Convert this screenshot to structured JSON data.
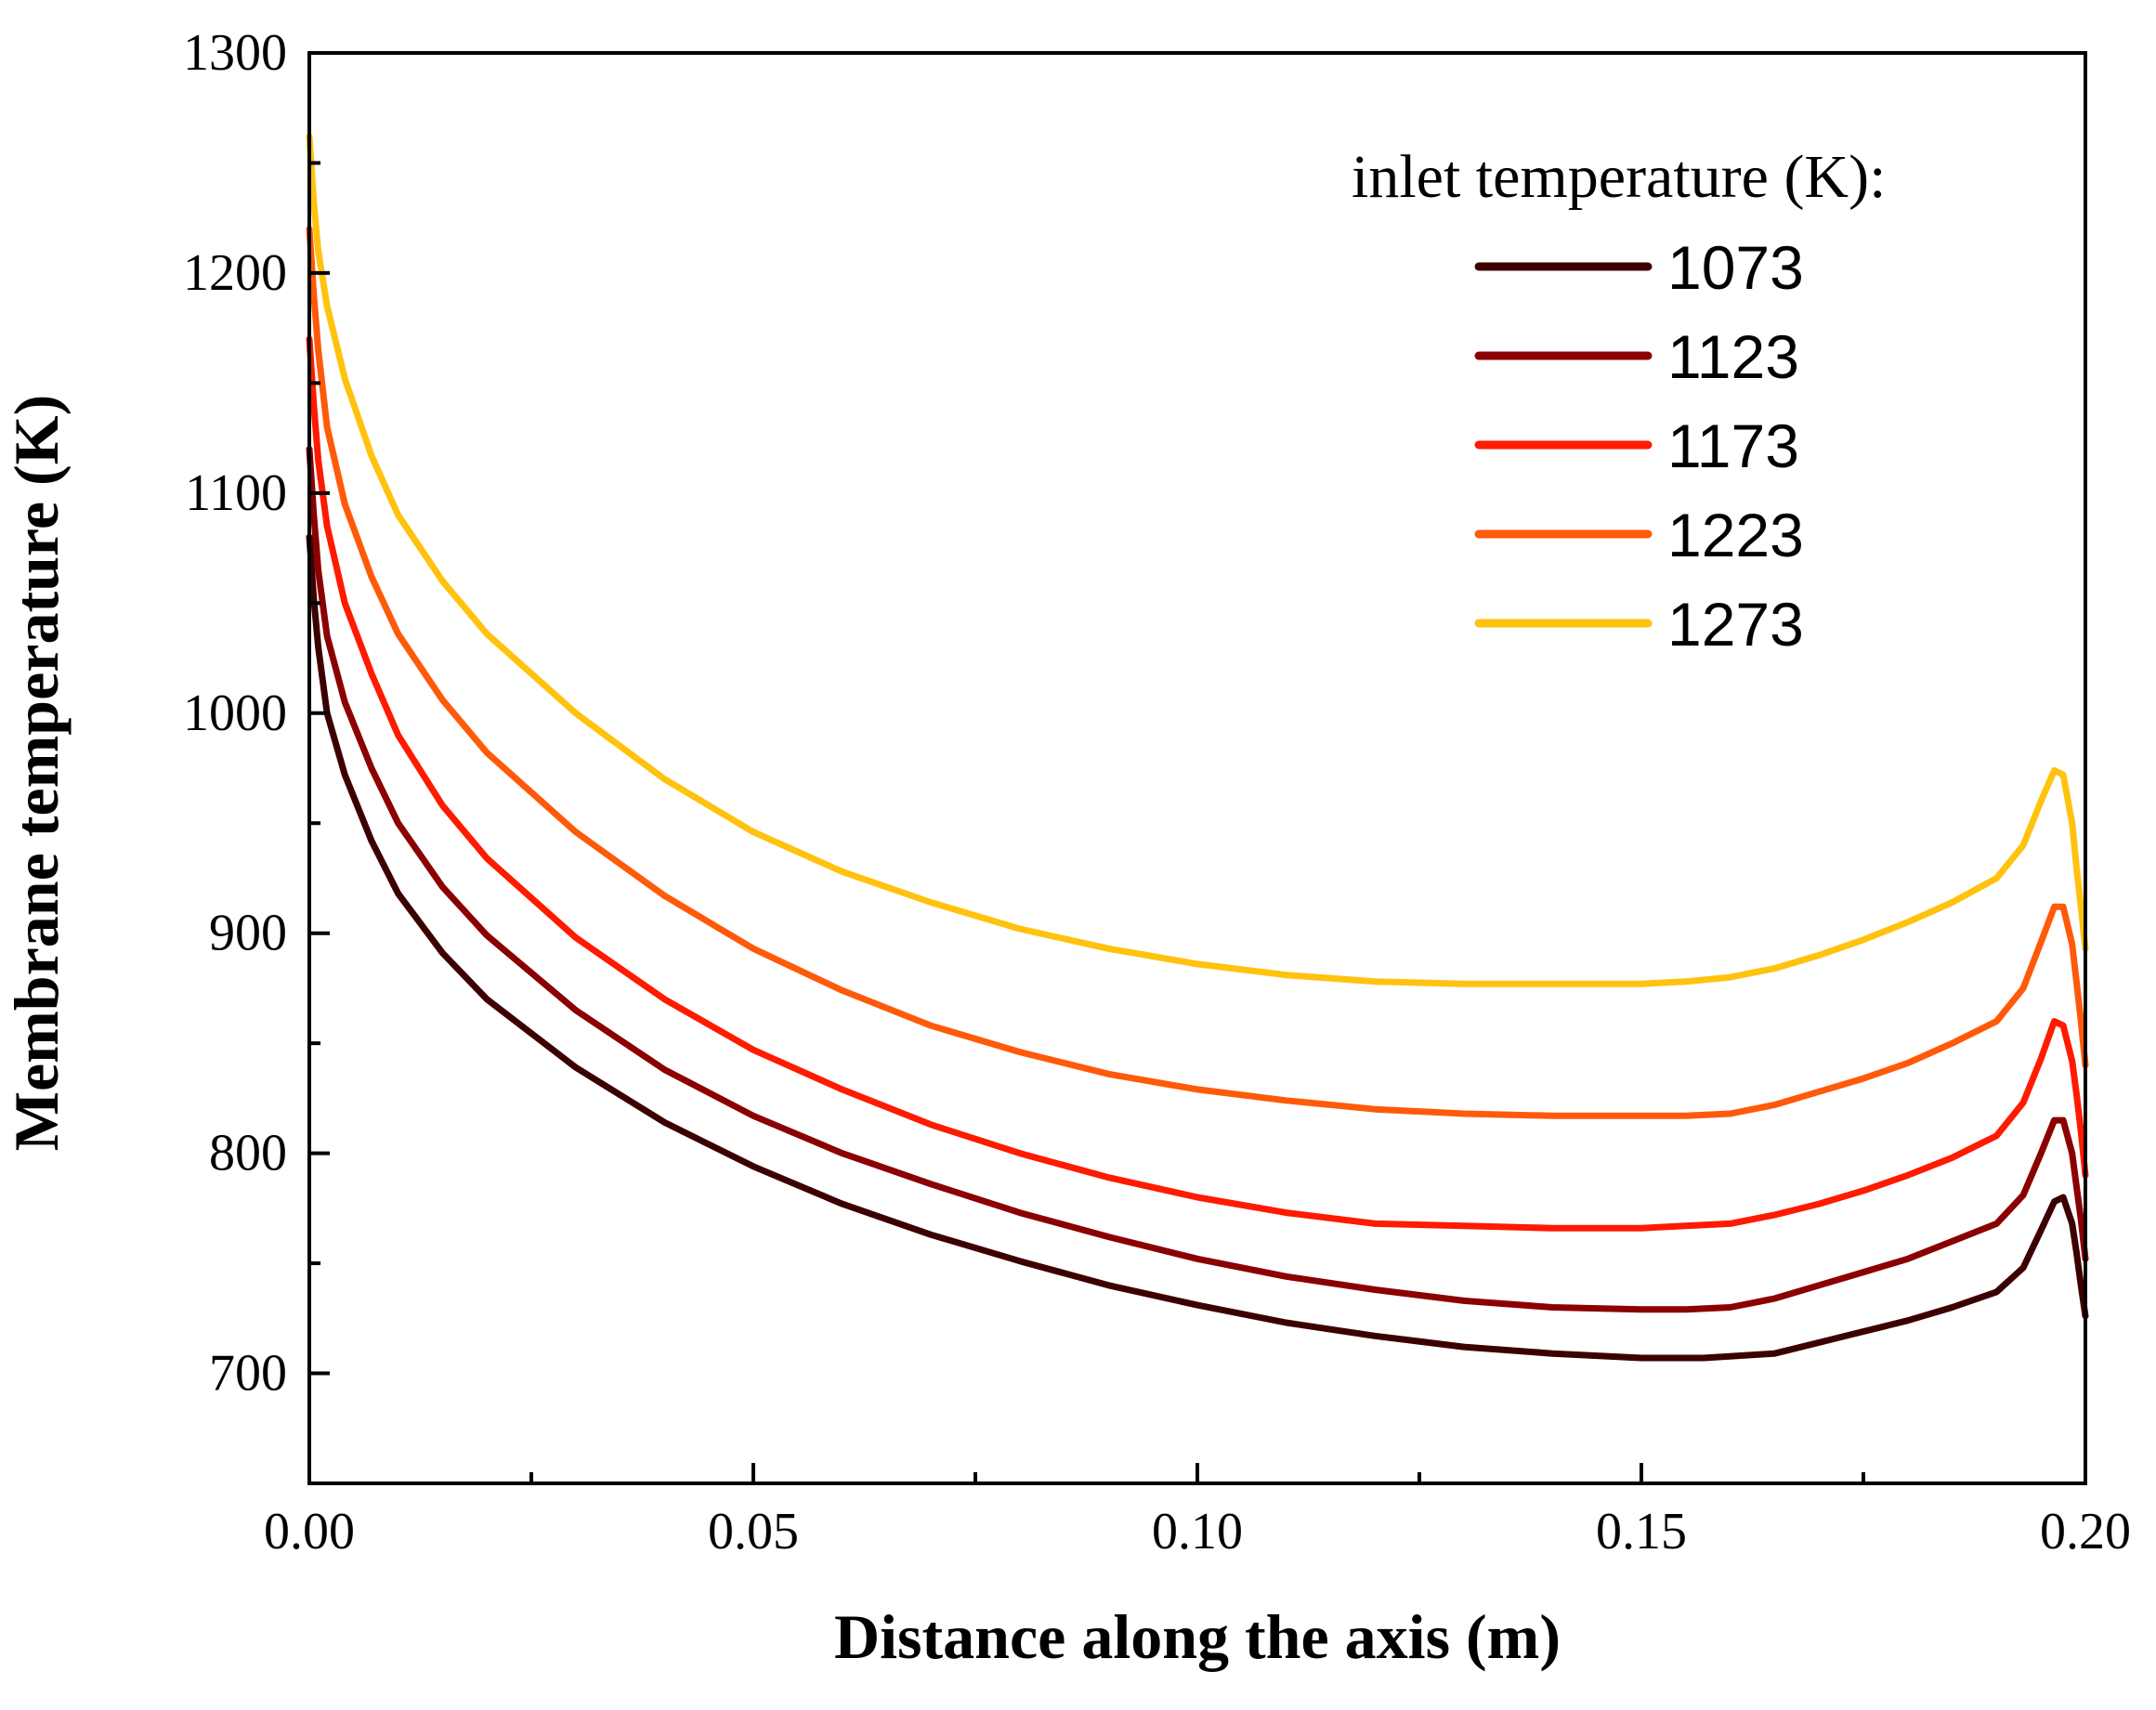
{
  "chart_data": {
    "type": "line",
    "title": "",
    "xlabel": "Distance along the axis (m)",
    "ylabel": "Membrane temperature (K)",
    "xlim": [
      0,
      0.2
    ],
    "ylim": [
      650,
      1300
    ],
    "xticks": [
      0.0,
      0.05,
      0.1,
      0.15,
      0.2
    ],
    "xtick_labels": [
      "0.00",
      "0.05",
      "0.10",
      "0.15",
      "0.20"
    ],
    "xminor": [
      0.025,
      0.075,
      0.125,
      0.175
    ],
    "yticks": [
      700,
      800,
      900,
      1000,
      1100,
      1200,
      1300
    ],
    "ytick_labels": [
      "700",
      "800",
      "900",
      "1000",
      "1100",
      "1200",
      "1300"
    ],
    "yminor": [
      650,
      750,
      850,
      950,
      1050,
      1150,
      1250
    ],
    "grid": false,
    "legend": {
      "title": "inlet temperature (K):",
      "position": "top-right"
    },
    "series": [
      {
        "name": "1073",
        "color": "#3d0000",
        "x": [
          0,
          0.0005,
          0.001,
          0.002,
          0.004,
          0.007,
          0.01,
          0.015,
          0.02,
          0.03,
          0.04,
          0.05,
          0.06,
          0.07,
          0.08,
          0.09,
          0.1,
          0.11,
          0.12,
          0.13,
          0.14,
          0.15,
          0.157,
          0.165,
          0.17,
          0.175,
          0.18,
          0.185,
          0.19,
          0.193,
          0.195,
          0.1965,
          0.1975,
          0.1985,
          0.199,
          0.1995,
          0.2
        ],
        "values": [
          1080,
          1052,
          1030,
          1000,
          972,
          942,
          918,
          891,
          870,
          839,
          814,
          794,
          777,
          763,
          751,
          740,
          731,
          723,
          717,
          712,
          709,
          707,
          707,
          709,
          714,
          719,
          724,
          730,
          737,
          748,
          765,
          778,
          780,
          768,
          755,
          740,
          726
        ]
      },
      {
        "name": "1123",
        "color": "#8b0000",
        "x": [
          0,
          0.0005,
          0.001,
          0.002,
          0.004,
          0.007,
          0.01,
          0.015,
          0.02,
          0.03,
          0.04,
          0.05,
          0.06,
          0.07,
          0.08,
          0.09,
          0.1,
          0.11,
          0.12,
          0.13,
          0.14,
          0.15,
          0.155,
          0.16,
          0.165,
          0.17,
          0.175,
          0.18,
          0.185,
          0.19,
          0.193,
          0.195,
          0.1965,
          0.1975,
          0.1985,
          0.199,
          0.1995,
          0.2
        ],
        "values": [
          1120,
          1090,
          1065,
          1035,
          1005,
          975,
          950,
          921,
          899,
          865,
          838,
          817,
          800,
          786,
          773,
          762,
          752,
          744,
          738,
          733,
          730,
          729,
          729,
          730,
          734,
          740,
          746,
          752,
          760,
          768,
          781,
          800,
          815,
          815,
          800,
          785,
          770,
          752
        ]
      },
      {
        "name": "1173",
        "color": "#ff1a00",
        "x": [
          0,
          0.0005,
          0.001,
          0.002,
          0.004,
          0.007,
          0.01,
          0.015,
          0.02,
          0.03,
          0.04,
          0.05,
          0.06,
          0.07,
          0.08,
          0.09,
          0.1,
          0.11,
          0.12,
          0.13,
          0.14,
          0.15,
          0.155,
          0.16,
          0.165,
          0.17,
          0.175,
          0.18,
          0.185,
          0.19,
          0.193,
          0.195,
          0.1965,
          0.1975,
          0.1985,
          0.199,
          0.1995,
          0.2
        ],
        "values": [
          1170,
          1140,
          1115,
          1085,
          1050,
          1018,
          990,
          958,
          934,
          898,
          870,
          847,
          829,
          813,
          800,
          789,
          780,
          773,
          768,
          767,
          766,
          766,
          767,
          768,
          772,
          777,
          783,
          790,
          798,
          808,
          823,
          843,
          860,
          858,
          842,
          827,
          810,
          790
        ]
      },
      {
        "name": "1223",
        "color": "#ff5a0a",
        "x": [
          0,
          0.0005,
          0.001,
          0.002,
          0.004,
          0.007,
          0.01,
          0.015,
          0.02,
          0.03,
          0.04,
          0.05,
          0.06,
          0.07,
          0.08,
          0.09,
          0.1,
          0.11,
          0.12,
          0.13,
          0.14,
          0.15,
          0.155,
          0.16,
          0.165,
          0.17,
          0.175,
          0.18,
          0.185,
          0.19,
          0.193,
          0.195,
          0.1965,
          0.1975,
          0.1985,
          0.199,
          0.1995,
          0.2
        ],
        "values": [
          1220,
          1190,
          1165,
          1130,
          1095,
          1062,
          1036,
          1006,
          982,
          946,
          917,
          893,
          874,
          858,
          846,
          836,
          829,
          824,
          820,
          818,
          817,
          817,
          817,
          818,
          822,
          828,
          834,
          841,
          850,
          860,
          875,
          896,
          912,
          912,
          895,
          878,
          860,
          840
        ]
      },
      {
        "name": "1273",
        "color": "#ffc20e",
        "x": [
          0,
          0.0005,
          0.001,
          0.002,
          0.004,
          0.007,
          0.01,
          0.015,
          0.02,
          0.03,
          0.04,
          0.05,
          0.06,
          0.07,
          0.08,
          0.09,
          0.1,
          0.11,
          0.12,
          0.13,
          0.14,
          0.15,
          0.155,
          0.16,
          0.165,
          0.17,
          0.175,
          0.18,
          0.185,
          0.19,
          0.193,
          0.195,
          0.1965,
          0.1975,
          0.1985,
          0.199,
          0.1995,
          0.2
        ],
        "values": [
          1262,
          1232,
          1210,
          1185,
          1152,
          1117,
          1090,
          1060,
          1036,
          1000,
          970,
          946,
          928,
          914,
          902,
          893,
          886,
          881,
          878,
          877,
          877,
          877,
          878,
          880,
          884,
          890,
          897,
          905,
          914,
          925,
          940,
          960,
          974,
          972,
          950,
          930,
          912,
          893
        ]
      }
    ]
  }
}
